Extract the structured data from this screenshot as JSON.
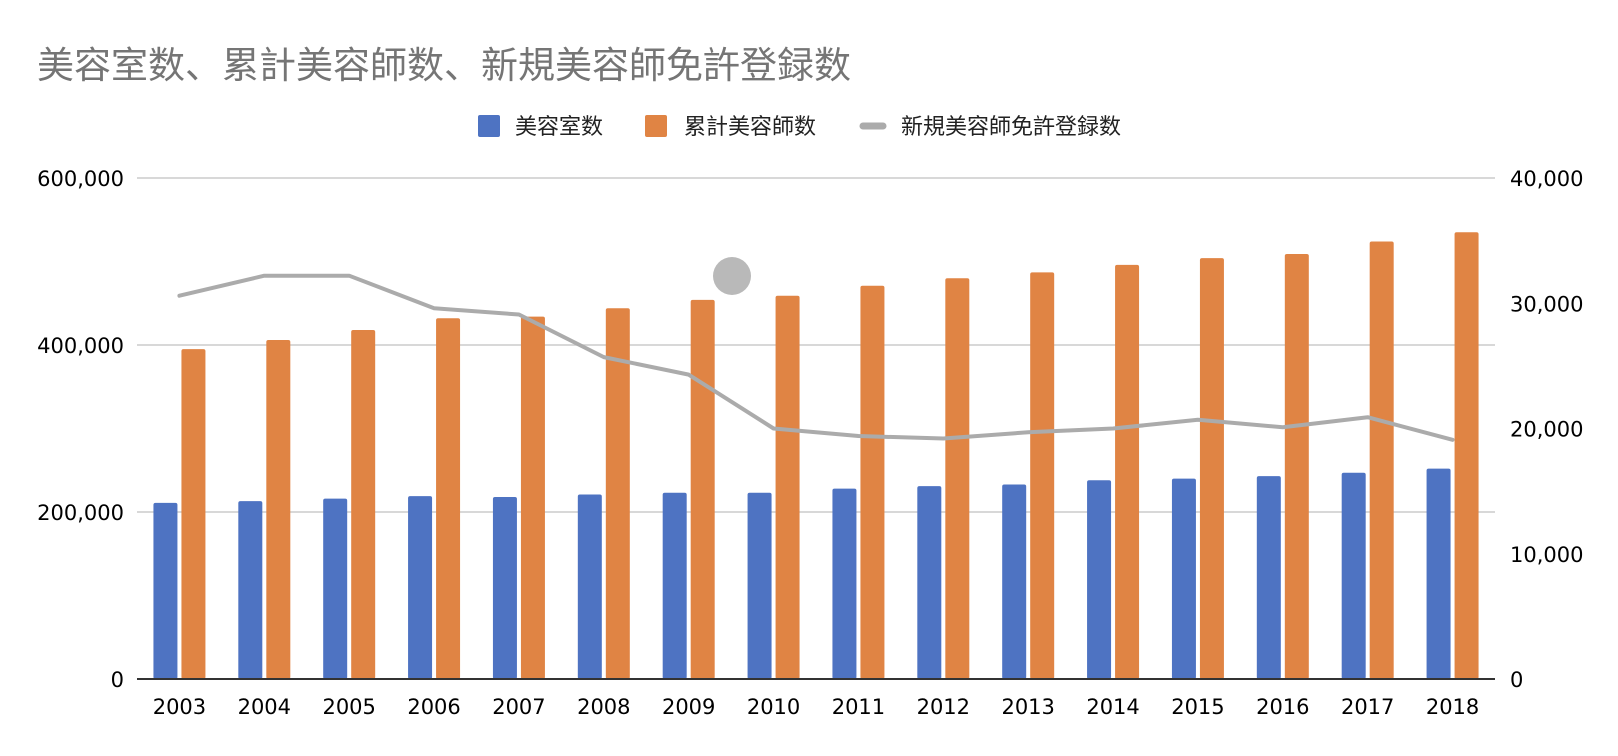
{
  "chart_data": {
    "type": "bar",
    "title": "美容室数、累計美容師数、新規美容師免許登録数",
    "categories": [
      "2003",
      "2004",
      "2005",
      "2006",
      "2007",
      "2008",
      "2009",
      "2010",
      "2011",
      "2012",
      "2013",
      "2014",
      "2015",
      "2016",
      "2017",
      "2018"
    ],
    "series": [
      {
        "name": "美容室数",
        "type": "bar",
        "axis": "left",
        "color": "#4e73c2",
        "values": [
          211000,
          213000,
          216000,
          219000,
          218000,
          221000,
          223000,
          223000,
          228000,
          231000,
          233000,
          238000,
          240000,
          243000,
          247000,
          252000
        ]
      },
      {
        "name": "累計美容師数",
        "type": "bar",
        "axis": "left",
        "color": "#e08444",
        "values": [
          395000,
          406000,
          418000,
          432000,
          434000,
          444000,
          454000,
          459000,
          471000,
          480000,
          487000,
          496000,
          504000,
          509000,
          524000,
          535000
        ]
      },
      {
        "name": "新規美容師免許登録数",
        "type": "line",
        "axis": "right",
        "color": "#ababab",
        "values": [
          30600,
          32200,
          32200,
          29600,
          29100,
          25700,
          24300,
          20000,
          19400,
          19200,
          19700,
          20000,
          20700,
          20100,
          20900,
          19100
        ]
      }
    ],
    "y_left": {
      "ylim": [
        0,
        600000
      ],
      "ticks": [
        "0",
        "200,000",
        "400,000",
        "600,000"
      ]
    },
    "y_right": {
      "ylim": [
        0,
        40000
      ],
      "ticks": [
        "0",
        "10,000",
        "20,000",
        "30,000",
        "40,000"
      ]
    },
    "grid": true,
    "legend": "top-center"
  }
}
